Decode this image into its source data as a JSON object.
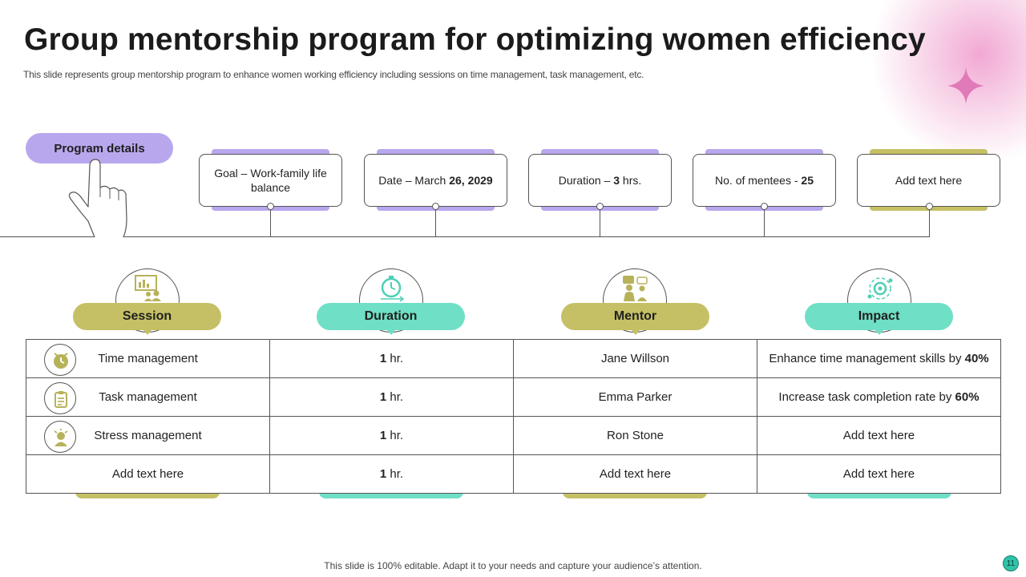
{
  "slide": {
    "title": "Group mentorship program for optimizing women efficiency",
    "subtitle": "This slide represents group mentorship program to enhance women working efficiency including sessions on time management, task management, etc.",
    "footer": "This slide is 100% editable. Adapt it to your needs and capture your audience’s attention.",
    "page_number": "11"
  },
  "program": {
    "label": "Program details",
    "cards": [
      {
        "pre": "Goal – Work-family life balance",
        "bold": "",
        "accent": "#b9a7ee"
      },
      {
        "pre": "Date – March ",
        "bold": "26, 2029",
        "accent": "#b9a7ee"
      },
      {
        "pre": "Duration – ",
        "bold": "3",
        "post": " hrs.",
        "accent": "#b9a7ee"
      },
      {
        "pre": "No. of mentees - ",
        "bold": "25",
        "accent": "#b9a7ee"
      },
      {
        "pre": "Add text here",
        "bold": "",
        "accent": "#c5c065"
      }
    ]
  },
  "table": {
    "headers": [
      "Session",
      "Duration",
      "Mentor",
      "Impact"
    ],
    "header_icons": [
      "presentation-icon",
      "stopwatch-icon",
      "mentor-icon",
      "target-gear-icon"
    ],
    "rows": [
      {
        "session": "Time management",
        "duration_bold": "1",
        "duration_unit": " hr.",
        "mentor": "Jane Willson",
        "impact": "Enhance time management skills by ",
        "impact_bold": "40%"
      },
      {
        "session": "Task management",
        "duration_bold": "1",
        "duration_unit": " hr.",
        "mentor": "Emma Parker",
        "impact": "Increase task completion rate by ",
        "impact_bold": "60%"
      },
      {
        "session": "Stress management",
        "duration_bold": "1",
        "duration_unit": " hr.",
        "mentor": "Ron Stone",
        "impact": "Add text here",
        "impact_bold": ""
      },
      {
        "session": "Add text here",
        "duration_bold": "1",
        "duration_unit": " hr.",
        "mentor": "Add text here",
        "impact": "Add text here",
        "impact_bold": ""
      }
    ]
  },
  "colors": {
    "olive": "#c5c065",
    "mint": "#6fdfc6",
    "lavender": "#b9a7ee",
    "pink_glow": "#f2a8d4"
  }
}
